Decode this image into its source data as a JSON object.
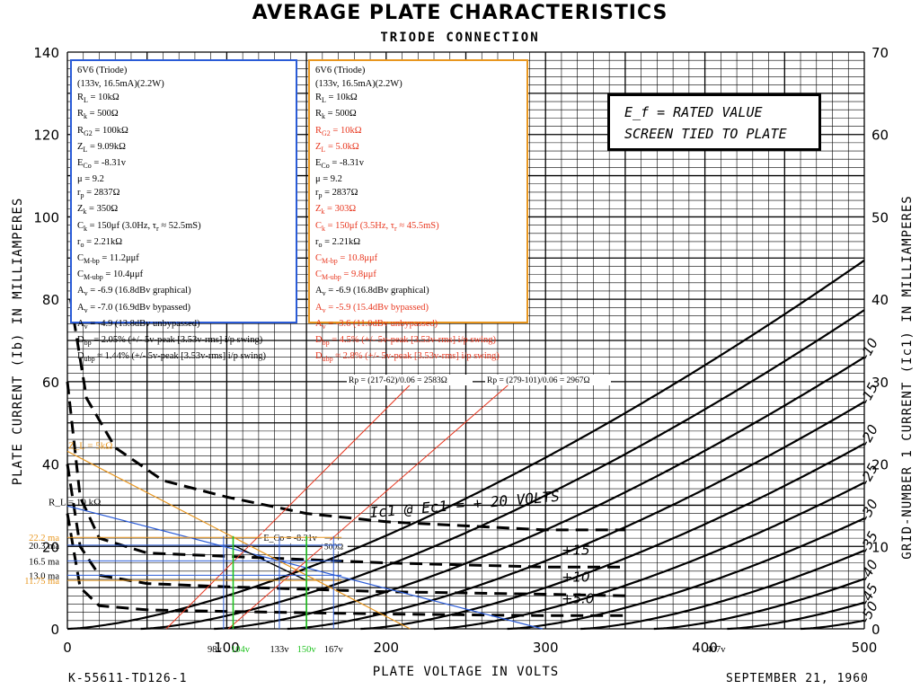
{
  "title": "AVERAGE PLATE CHARACTERISTICS",
  "subtitle": "TRIODE CONNECTION",
  "ef_box": {
    "line1": "E_f = RATED VALUE",
    "line2": "SCREEN TIED TO PLATE"
  },
  "footer_left": "K-55611-TD126-1",
  "footer_right": "SEPTEMBER 21, 1960",
  "left_box": {
    "border_color": "#2a5bd7",
    "lines": [
      "6V6 (Triode)",
      "(133v, 16.5mA)(2.2W)",
      "R_L = 10kΩ",
      "R_k = 500Ω",
      "R_G2 = 100kΩ",
      "Z_L = 9.09kΩ",
      "E_Co = -8.31v",
      "μ = 9.2",
      "r_p = 2837Ω",
      "Z_k = 350Ω",
      "C_k = 150μf (3.0Hz, τ_r ≈ 52.5mS)",
      "r_o = 2.21kΩ",
      "C_M-bp = 11.2μμf",
      "C_M-ubp = 10.4μμf",
      "A_v = -6.9 (16.8dBv graphical)",
      "A_v = -7.0 (16.9dBv bypassed)",
      "A_v = -4.9 (13.8dBv unbypassed)",
      "D_bp = 2.05% (+/- 5v-peak [3.53v-rms] i/p swing)",
      "D_ubp ≈ 1.44% (+/- 5v-peak [3.53v-rms] i/p swing)"
    ]
  },
  "right_box": {
    "border_color": "#e8961e",
    "lines": [
      {
        "t": "6V6 (Triode)",
        "red": false
      },
      {
        "t": "(133v, 16.5mA)(2.2W)",
        "red": false
      },
      {
        "t": "R_L = 10kΩ",
        "red": false
      },
      {
        "t": "R_k = 500Ω",
        "red": false
      },
      {
        "t": "R_G2 = 10kΩ",
        "red": true
      },
      {
        "t": "Z_L = 5.0kΩ",
        "red": true
      },
      {
        "t": "E_Co = -8.31v",
        "red": false
      },
      {
        "t": "μ = 9.2",
        "red": false
      },
      {
        "t": "r_p = 2837Ω",
        "red": false
      },
      {
        "t": "Z_k = 303Ω",
        "red": true
      },
      {
        "t": "C_k = 150μf (3.5Hz, τ_r ≈ 45.5mS)",
        "red": true
      },
      {
        "t": "r_o = 2.21kΩ",
        "red": false
      },
      {
        "t": "C_M-bp = 10.8μμf",
        "red": true
      },
      {
        "t": "C_M-ubp = 9.8μμf",
        "red": true
      },
      {
        "t": "A_v = -6.9 (16.8dBv graphical)",
        "red": false
      },
      {
        "t": "A_v = -5.9 (15.4dBv bypassed)",
        "red": true
      },
      {
        "t": "A_v = -3.6 (11.0dBv unbypassed)",
        "red": true
      },
      {
        "t": "D_bp = 4.5% (+/- 5v-peak [3.53v-rms] i/p swing)",
        "red": true
      },
      {
        "t": "D_ubp ≈ 2.8% (+/- 5v-peak [3.53v-rms] i/p swing)",
        "red": true
      }
    ]
  },
  "chart_data": {
    "type": "line",
    "title": "AVERAGE PLATE CHARACTERISTICS",
    "subtitle": "TRIODE CONNECTION",
    "xlabel": "PLATE VOLTAGE IN VOLTS",
    "ylabel_left": "PLATE CURRENT (Ib) IN MILLIAMPERES",
    "ylabel_right": "GRID-NUMBER 1 CURRENT (Ic1) IN MILLIAMPERES",
    "xlim": [
      0,
      500
    ],
    "ylim": [
      0,
      140
    ],
    "ylim_right": [
      0,
      70
    ],
    "x_ticks": [
      0,
      100,
      200,
      300,
      400,
      500
    ],
    "y_ticks": [
      0,
      20,
      40,
      60,
      80,
      100,
      120,
      140
    ],
    "y_ticks_right": [
      0,
      10,
      20,
      30,
      40,
      50,
      60,
      70
    ],
    "grid": true,
    "plate_curves": [
      {
        "label": "",
        "ec": 0,
        "k": 0.008,
        "p": 1.5
      },
      {
        "label": "",
        "ec": -5,
        "k": 0.008,
        "p": 1.5
      },
      {
        "label": "-10",
        "ec": -10,
        "k": 0.008,
        "p": 1.5
      },
      {
        "label": "-15",
        "ec": -15,
        "k": 0.008,
        "p": 1.5
      },
      {
        "label": "-20",
        "ec": -20,
        "k": 0.008,
        "p": 1.5
      },
      {
        "label": "-25",
        "ec": -25,
        "k": 0.008,
        "p": 1.5
      },
      {
        "label": "-30",
        "ec": -30,
        "k": 0.008,
        "p": 1.5
      },
      {
        "label": "-35",
        "ec": -35,
        "k": 0.008,
        "p": 1.5
      },
      {
        "label": "-40",
        "ec": -40,
        "k": 0.008,
        "p": 1.5
      },
      {
        "label": "-45",
        "ec": -45,
        "k": 0.008,
        "p": 1.5
      },
      {
        "label": "-50",
        "ec": -50,
        "k": 0.008,
        "p": 1.5
      }
    ],
    "grid_current_curves": [
      {
        "label": "Ic1 @ Ec1 = + 20 VOLTS",
        "points": [
          [
            2,
            40
          ],
          [
            12,
            28
          ],
          [
            30,
            22
          ],
          [
            60,
            18
          ],
          [
            100,
            16
          ],
          [
            150,
            14
          ],
          [
            200,
            13
          ],
          [
            250,
            12.5
          ],
          [
            300,
            12
          ],
          [
            350,
            12
          ]
        ]
      },
      {
        "label": "+15",
        "points": [
          [
            0,
            30
          ],
          [
            8,
            16
          ],
          [
            20,
            11
          ],
          [
            50,
            9.2
          ],
          [
            100,
            8.8
          ],
          [
            200,
            8
          ],
          [
            300,
            7.5
          ],
          [
            350,
            7.5
          ]
        ]
      },
      {
        "label": "+10",
        "points": [
          [
            0,
            20
          ],
          [
            8,
            10
          ],
          [
            20,
            6.5
          ],
          [
            50,
            5.5
          ],
          [
            100,
            5.1
          ],
          [
            200,
            4.5
          ],
          [
            300,
            4.2
          ],
          [
            350,
            4
          ]
        ]
      },
      {
        "label": "+5.0",
        "points": [
          [
            0,
            14
          ],
          [
            8,
            5
          ],
          [
            20,
            2.8
          ],
          [
            50,
            2.3
          ],
          [
            100,
            2.1
          ],
          [
            200,
            1.8
          ],
          [
            300,
            1.6
          ],
          [
            350,
            1.6
          ]
        ]
      }
    ],
    "load_lines": [
      {
        "label": "R_L = 10 kΩ",
        "color": "#2a5bd7",
        "points": [
          [
            0,
            29.8
          ],
          [
            298,
            0
          ]
        ]
      },
      {
        "label": "Z_L = 5kΩ",
        "color": "#e8961e",
        "points": [
          [
            0,
            43.1
          ],
          [
            215,
            0
          ]
        ]
      }
    ],
    "tangent_lines": [
      {
        "label": "Rp = (217-62)/0.06 = 2583Ω",
        "color": "#e8361e",
        "points": [
          [
            62,
            0
          ],
          [
            217,
            60
          ]
        ]
      },
      {
        "label": "Rp = (279-101)/0.06 = 2967Ω",
        "color": "#e8361e",
        "points": [
          [
            101,
            0
          ],
          [
            279,
            60
          ]
        ]
      }
    ],
    "cathode_line": {
      "label": "500Ω",
      "color": "#000000",
      "points": [
        [
          104,
          20.3
        ],
        [
          150,
          11.75
        ]
      ]
    },
    "operating_point": {
      "label": "E_Co = -8.31v",
      "x": 133,
      "y": 16.5
    },
    "current_markers": [
      {
        "label": "22.2 ma",
        "y": 22.2,
        "color": "#e8961e"
      },
      {
        "label": "20.3 ma",
        "y": 20.3,
        "color": "#2a5bd7"
      },
      {
        "label": "16.5 ma",
        "y": 16.5,
        "color": "#2a5bd7"
      },
      {
        "label": "13.0 ma",
        "y": 13.0,
        "color": "#2a5bd7"
      },
      {
        "label": "11.75 ma",
        "y": 11.75,
        "color": "#e8961e"
      }
    ],
    "voltage_markers": [
      {
        "label": "98v",
        "x": 98,
        "color": "#2a5bd7"
      },
      {
        "label": "104v",
        "x": 104,
        "color": "#1fc21f"
      },
      {
        "label": "133v",
        "x": 133,
        "color": "#2a5bd7"
      },
      {
        "label": "150v",
        "x": 150,
        "color": "#1fc21f"
      },
      {
        "label": "167v",
        "x": 167,
        "color": "#2a5bd7"
      },
      {
        "label": "407v",
        "x": 407,
        "color": "#000000"
      }
    ]
  }
}
